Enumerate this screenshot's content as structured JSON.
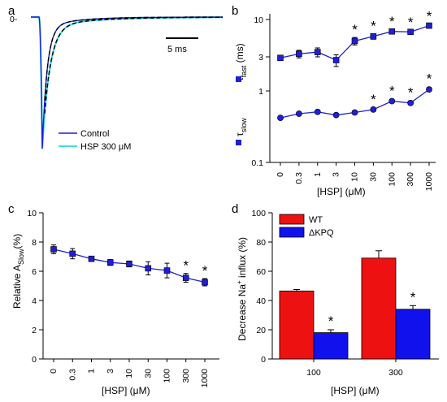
{
  "panels": {
    "a": "a",
    "b": "b",
    "c": "c",
    "d": "d"
  },
  "chart_data": [
    {
      "panel": "a",
      "type": "line",
      "zero_label": "0-",
      "scale_bar": "5 ms",
      "legend": [
        "Control",
        "HSP 300 μM"
      ],
      "series": [
        {
          "name": "Control",
          "color": "#1f1fd6"
        },
        {
          "name": "HSP 300 μM",
          "color": "#3fe0e0"
        }
      ]
    },
    {
      "panel": "b",
      "type": "line",
      "scale": "log",
      "ylabel_fast": "τ",
      "ylabel_fast_sub": "fast",
      "ylabel_fast_unit": " (ms)",
      "ylabel_slow": "τ",
      "ylabel_slow_sub": "slow",
      "xlabel": "[HSP] (μM)",
      "categories": [
        "0",
        "0.3",
        "1",
        "3",
        "10",
        "30",
        "100",
        "300",
        "1000"
      ],
      "yticks": [
        "0.1",
        "1",
        "3",
        "10"
      ],
      "ylim": [
        0.1,
        12
      ],
      "series": [
        {
          "marker": "square",
          "values": [
            2.9,
            3.3,
            3.5,
            2.7,
            5.0,
            5.8,
            6.8,
            6.7,
            8.2
          ],
          "errors": [
            0.2,
            0.4,
            0.5,
            0.5,
            0.6,
            0.5,
            0.5,
            0.4,
            0.4
          ]
        },
        {
          "marker": "circle",
          "values": [
            0.42,
            0.48,
            0.51,
            0.46,
            0.5,
            0.55,
            0.72,
            0.68,
            1.05
          ],
          "errors": [
            0.02,
            0.02,
            0.03,
            0.02,
            0.03,
            0.03,
            0.04,
            0.04,
            0.07
          ]
        }
      ],
      "significant": [
        "10",
        "30",
        "100",
        "300",
        "1000"
      ],
      "significant_slow": [
        "30",
        "100",
        "300",
        "1000"
      ],
      "star": "*",
      "color": "#1f1fd6"
    },
    {
      "panel": "c",
      "type": "line",
      "ylabel": "Relative A",
      "ylabel_sub": "Slow",
      "ylabel_unit": "(%)",
      "xlabel": "[HSP] (μM)",
      "categories": [
        "0",
        "0.3",
        "1",
        "3",
        "10",
        "30",
        "100",
        "300",
        "1000"
      ],
      "yticks": [
        "0",
        "2",
        "4",
        "6",
        "8",
        "10"
      ],
      "ylim": [
        0,
        10
      ],
      "values": [
        7.5,
        7.2,
        6.85,
        6.6,
        6.5,
        6.2,
        6.05,
        5.55,
        5.25
      ],
      "errors": [
        0.3,
        0.35,
        0.15,
        0.2,
        0.2,
        0.45,
        0.5,
        0.3,
        0.25
      ],
      "significant": [
        "300",
        "1000"
      ],
      "star": "*",
      "color": "#1f1fd6"
    },
    {
      "panel": "d",
      "type": "bar",
      "ylabel": "Decrease Na",
      "ylabel_sup": "+",
      "ylabel_rest": " influx (%)",
      "xlabel": "[HSP] (μM)",
      "categories": [
        "100",
        "300"
      ],
      "yticks": [
        "0",
        "20",
        "40",
        "60",
        "80",
        "100"
      ],
      "ylim": [
        0,
        100
      ],
      "series": [
        {
          "name": "WT",
          "color": "#ee1111",
          "values": [
            46.5,
            69.0
          ],
          "errors": [
            1.0,
            5.0
          ]
        },
        {
          "name": "ΔKPQ",
          "color": "#1111ee",
          "values": [
            18.0,
            34.0
          ],
          "errors": [
            2.0,
            2.5
          ]
        }
      ],
      "significant": [
        "ΔKPQ@100",
        "ΔKPQ@300"
      ],
      "star": "*"
    }
  ]
}
